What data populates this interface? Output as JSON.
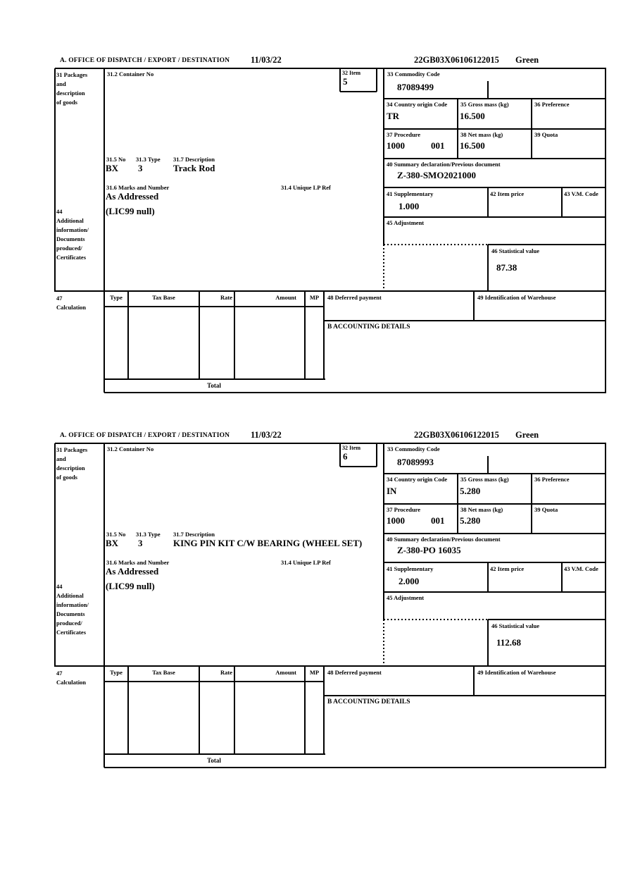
{
  "labels": {
    "office": "A.  OFFICE OF DISPATCH / EXPORT / DESTINATION",
    "box31": {
      "l1": "31 Packages",
      "l2": "and",
      "l3": "description",
      "l4": "of goods"
    },
    "box31_2": "31.2 Container No",
    "box32": "32 Item",
    "box33": "33 Commodity Code",
    "box34": "34 Country origin Code",
    "box35": "35 Gross mass (kg)",
    "box36": "36 Preference",
    "box37": "37 Procedure",
    "box38": "38 Net mass (kg)",
    "box39": "39 Quota",
    "box31_5": "31.5 No",
    "box31_3": "31.3 Type",
    "box31_7": "31.7 Description",
    "box31_6": "31.6 Marks and Number",
    "box31_4": "31.4 Unique LP Ref",
    "box40": "40 Summary declaration/Previous document",
    "box41": "41 Supplementary",
    "box42": "42 Item price",
    "box43": "43 V.M. Code",
    "box44": {
      "l1": "44",
      "l2": "Additional",
      "l3": "information/",
      "l4": "Documents",
      "l5": "produced/",
      "l6": "Certificates"
    },
    "box45": "45 Adjustment",
    "box46": "46 Statistical value",
    "box47": {
      "l1": "47",
      "l2": "Calculation"
    },
    "col_type": "Type",
    "col_tax_base": "Tax Base",
    "col_rate": "Rate",
    "col_amount": "Amount",
    "col_mp": "MP",
    "total": "Total",
    "box48": "48 Deferred payment",
    "box49": "49 Identification of Warehouse",
    "accounting": "B ACCOUNTING DETAILS"
  },
  "forms": [
    {
      "date": "11/03/22",
      "mrn": "22GB03X06106122015",
      "route": "Green",
      "item_no": "5",
      "commodity_code": "87089499",
      "country_origin": "TR",
      "gross_mass": "16.500",
      "procedure": "1000",
      "procedure_2": "001",
      "net_mass": "16.500",
      "package_no": "BX",
      "package_type": "3",
      "goods_description": "Track Rod",
      "marks": "As Addressed",
      "previous_document": "Z-380-SMO2021000",
      "supplementary_units": "1.000",
      "additional_information": "(LIC99 null)",
      "statistical_value": "87.38"
    },
    {
      "date": "11/03/22",
      "mrn": "22GB03X06106122015",
      "route": "Green",
      "item_no": "6",
      "commodity_code": "87089993",
      "country_origin": "IN",
      "gross_mass": "5.280",
      "procedure": "1000",
      "procedure_2": "001",
      "net_mass": "5.280",
      "package_no": "BX",
      "package_type": "3",
      "goods_description": "KING PIN KIT C/W BEARING (WHEEL SET)",
      "marks": "As Addressed",
      "previous_document": "Z-380-PO 16035",
      "supplementary_units": "2.000",
      "additional_information": "(LIC99 null)",
      "statistical_value": "112.68"
    }
  ]
}
